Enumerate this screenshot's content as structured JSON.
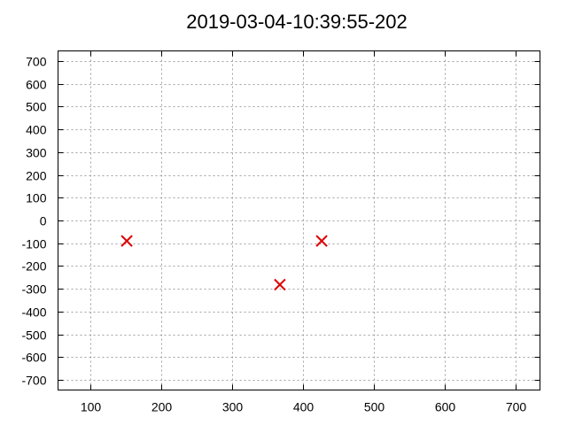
{
  "chart_data": {
    "type": "scatter",
    "title": "2019-03-04-10:39:55-202",
    "xlabel": "",
    "ylabel": "",
    "xlim": [
      55,
      735
    ],
    "ylim": [
      -745,
      745
    ],
    "x_ticks": [
      100,
      200,
      300,
      400,
      500,
      600,
      700
    ],
    "y_ticks": [
      700,
      600,
      500,
      400,
      300,
      200,
      100,
      0,
      -100,
      -200,
      -300,
      -400,
      -500,
      -600,
      -700
    ],
    "grid": true,
    "marker": "x",
    "marker_color": "#dd0000",
    "series": [
      {
        "points": [
          {
            "x": 152,
            "y": -90
          },
          {
            "x": 368,
            "y": -282
          },
          {
            "x": 427,
            "y": -90
          }
        ]
      }
    ]
  }
}
